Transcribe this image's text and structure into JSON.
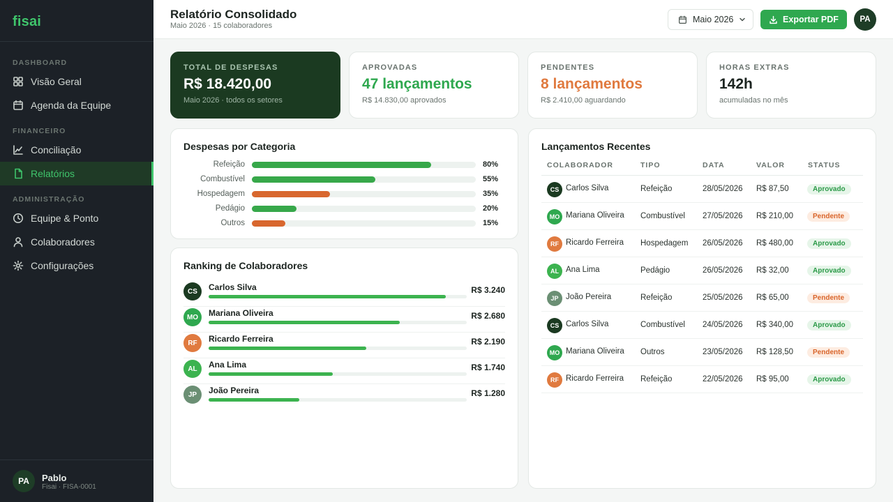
{
  "brand": "fisai",
  "sidebar": {
    "sections": [
      {
        "label": "DASHBOARD",
        "items": [
          {
            "label": "Visão Geral",
            "icon": "grid-icon",
            "active": false
          },
          {
            "label": "Agenda da Equipe",
            "icon": "calendar-icon",
            "active": false
          }
        ]
      },
      {
        "label": "FINANCEIRO",
        "items": [
          {
            "label": "Conciliação",
            "icon": "chart-line-icon",
            "active": false
          },
          {
            "label": "Relatórios",
            "icon": "document-icon",
            "active": true
          }
        ]
      },
      {
        "label": "ADMINISTRAÇÃO",
        "items": [
          {
            "label": "Equipe & Ponto",
            "icon": "clock-icon",
            "active": false
          },
          {
            "label": "Colaboradores",
            "icon": "user-icon",
            "active": false
          },
          {
            "label": "Configurações",
            "icon": "gear-icon",
            "active": false
          }
        ]
      }
    ],
    "user": {
      "initials": "PA",
      "name": "Pablo",
      "sub": "Fisai · FISA-0001"
    }
  },
  "header": {
    "title": "Relatório Consolidado",
    "subtitle": "Maio 2026 · 15 colaboradores",
    "month": "Maio 2026",
    "export_label": "Exportar PDF",
    "avatar": "PA"
  },
  "kpis": [
    {
      "label": "TOTAL DE DESPESAS",
      "value": "R$ 18.420,00",
      "note": "Maio 2026 · todos os setores"
    },
    {
      "label": "APROVADAS",
      "value": "47 lançamentos",
      "note": "R$ 14.830,00 aprovados"
    },
    {
      "label": "PENDENTES",
      "value": "8 lançamentos",
      "note": "R$ 2.410,00 aguardando"
    },
    {
      "label": "HORAS EXTRAS",
      "value": "142h",
      "note": "acumuladas no mês"
    }
  ],
  "categories": {
    "title": "Despesas por Categoria",
    "items": [
      {
        "label": "Refeição",
        "pct": 80,
        "pct_label": "80%",
        "color": "#37a84a"
      },
      {
        "label": "Combustível",
        "pct": 55,
        "pct_label": "55%",
        "color": "#37a84a"
      },
      {
        "label": "Hospedagem",
        "pct": 35,
        "pct_label": "35%",
        "color": "#d8672e"
      },
      {
        "label": "Pedágio",
        "pct": 20,
        "pct_label": "20%",
        "color": "#37a84a"
      },
      {
        "label": "Outros",
        "pct": 15,
        "pct_label": "15%",
        "color": "#d8672e"
      }
    ]
  },
  "ranking": {
    "title": "Ranking de Colaboradores",
    "items": [
      {
        "initials": "CS",
        "name": "Carlos Silva",
        "amount": "R$ 3.240",
        "fraction": 0.92,
        "color": "#1b3a21"
      },
      {
        "initials": "MO",
        "name": "Mariana Oliveira",
        "amount": "R$ 2.680",
        "fraction": 0.74,
        "color": "#2fa84f"
      },
      {
        "initials": "RF",
        "name": "Ricardo Ferreira",
        "amount": "R$ 2.190",
        "fraction": 0.61,
        "color": "#e07a3f"
      },
      {
        "initials": "AL",
        "name": "Ana Lima",
        "amount": "R$ 1.740",
        "fraction": 0.48,
        "color": "#3cb34f"
      },
      {
        "initials": "JP",
        "name": "João Pereira",
        "amount": "R$ 1.280",
        "fraction": 0.35,
        "color": "#6b8f74"
      }
    ]
  },
  "recent": {
    "title": "Lançamentos Recentes",
    "columns": [
      "COLABORADOR",
      "TIPO",
      "DATA",
      "VALOR",
      "STATUS"
    ],
    "rows": [
      {
        "initials": "CS",
        "name": "Carlos Silva",
        "tipo": "Refeição",
        "data": "28/05/2026",
        "valor": "R$ 87,50",
        "status": "Aprovado",
        "color": "#1b3a21"
      },
      {
        "initials": "MO",
        "name": "Mariana Oliveira",
        "tipo": "Combustível",
        "data": "27/05/2026",
        "valor": "R$ 210,00",
        "status": "Pendente",
        "color": "#2fa84f"
      },
      {
        "initials": "RF",
        "name": "Ricardo Ferreira",
        "tipo": "Hospedagem",
        "data": "26/05/2026",
        "valor": "R$ 480,00",
        "status": "Aprovado",
        "color": "#e07a3f"
      },
      {
        "initials": "AL",
        "name": "Ana Lima",
        "tipo": "Pedágio",
        "data": "26/05/2026",
        "valor": "R$ 32,00",
        "status": "Aprovado",
        "color": "#3cb34f"
      },
      {
        "initials": "JP",
        "name": "João Pereira",
        "tipo": "Refeição",
        "data": "25/05/2026",
        "valor": "R$ 65,00",
        "status": "Pendente",
        "color": "#6b8f74"
      },
      {
        "initials": "CS",
        "name": "Carlos Silva",
        "tipo": "Combustível",
        "data": "24/05/2026",
        "valor": "R$ 340,00",
        "status": "Aprovado",
        "color": "#1b3a21"
      },
      {
        "initials": "MO",
        "name": "Mariana Oliveira",
        "tipo": "Outros",
        "data": "23/05/2026",
        "valor": "R$ 128,50",
        "status": "Pendente",
        "color": "#2fa84f"
      },
      {
        "initials": "RF",
        "name": "Ricardo Ferreira",
        "tipo": "Refeição",
        "data": "22/05/2026",
        "valor": "R$ 95,00",
        "status": "Aprovado",
        "color": "#e07a3f"
      }
    ]
  }
}
